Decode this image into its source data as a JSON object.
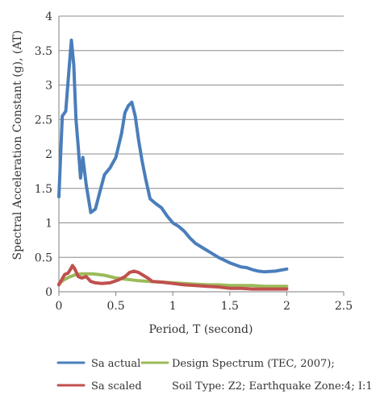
{
  "chart_data": {
    "type": "line",
    "title": "",
    "xlabel": "Period, T (second)",
    "ylabel": "Spectral Acceleration Constant (g), (AT)",
    "xlim": [
      0,
      2.5
    ],
    "ylim": [
      0,
      4
    ],
    "x_ticks": [
      "0",
      "0.5",
      "1",
      "1.5",
      "2",
      "2.5"
    ],
    "y_ticks": [
      "0",
      "0.5",
      "1",
      "1.5",
      "2",
      "2.5",
      "3",
      "3.5",
      "4"
    ],
    "grid": "horizontal",
    "legend_position": "bottom",
    "series": [
      {
        "name": "Sa actual",
        "color": "#4a7ebb",
        "x": [
          0.0,
          0.03,
          0.06,
          0.09,
          0.11,
          0.13,
          0.15,
          0.17,
          0.19,
          0.21,
          0.24,
          0.28,
          0.32,
          0.36,
          0.4,
          0.45,
          0.5,
          0.55,
          0.58,
          0.61,
          0.64,
          0.67,
          0.7,
          0.73,
          0.76,
          0.8,
          0.85,
          0.9,
          0.95,
          1.0,
          1.05,
          1.1,
          1.15,
          1.2,
          1.3,
          1.4,
          1.5,
          1.6,
          1.65,
          1.7,
          1.75,
          1.8,
          1.9,
          2.0
        ],
        "values": [
          1.38,
          2.55,
          2.62,
          3.25,
          3.65,
          3.3,
          2.5,
          2.1,
          1.65,
          1.95,
          1.55,
          1.15,
          1.2,
          1.45,
          1.7,
          1.8,
          1.95,
          2.3,
          2.6,
          2.7,
          2.75,
          2.55,
          2.2,
          1.9,
          1.65,
          1.35,
          1.28,
          1.22,
          1.1,
          1.0,
          0.95,
          0.88,
          0.78,
          0.7,
          0.6,
          0.5,
          0.42,
          0.36,
          0.35,
          0.32,
          0.3,
          0.29,
          0.3,
          0.33
        ]
      },
      {
        "name": "Sa scaled",
        "color": "#c0504d",
        "x": [
          0.0,
          0.05,
          0.08,
          0.1,
          0.12,
          0.14,
          0.17,
          0.2,
          0.24,
          0.28,
          0.32,
          0.38,
          0.45,
          0.52,
          0.58,
          0.62,
          0.66,
          0.7,
          0.74,
          0.78,
          0.82,
          0.9,
          1.0,
          1.1,
          1.2,
          1.3,
          1.4,
          1.5,
          1.6,
          1.7,
          1.8,
          1.9,
          2.0
        ],
        "values": [
          0.1,
          0.25,
          0.27,
          0.32,
          0.38,
          0.33,
          0.22,
          0.2,
          0.22,
          0.15,
          0.13,
          0.12,
          0.13,
          0.17,
          0.22,
          0.28,
          0.3,
          0.28,
          0.24,
          0.2,
          0.15,
          0.14,
          0.12,
          0.1,
          0.09,
          0.08,
          0.07,
          0.05,
          0.05,
          0.04,
          0.04,
          0.04,
          0.04
        ]
      },
      {
        "name": "Design Spectrum (TEC, 2007);",
        "color": "#9bbb59",
        "x": [
          0.0,
          0.05,
          0.1,
          0.15,
          0.2,
          0.3,
          0.4,
          0.5,
          0.6,
          0.7,
          0.8,
          0.9,
          1.0,
          1.1,
          1.2,
          1.3,
          1.4,
          1.5,
          1.6,
          1.7,
          1.8,
          1.9,
          2.0
        ],
        "values": [
          0.12,
          0.18,
          0.22,
          0.25,
          0.26,
          0.26,
          0.24,
          0.2,
          0.18,
          0.16,
          0.15,
          0.14,
          0.13,
          0.12,
          0.11,
          0.1,
          0.1,
          0.09,
          0.09,
          0.09,
          0.08,
          0.08,
          0.08
        ]
      }
    ],
    "legend": {
      "items": [
        {
          "label": "Sa actual",
          "color": "#4a7ebb"
        },
        {
          "label": "Design Spectrum (TEC, 2007);",
          "color": "#9bbb59"
        },
        {
          "label": "Sa scaled",
          "color": "#c0504d"
        }
      ],
      "note": "Soil Type: Z2; Earthquake Zone:4; I:1"
    }
  }
}
